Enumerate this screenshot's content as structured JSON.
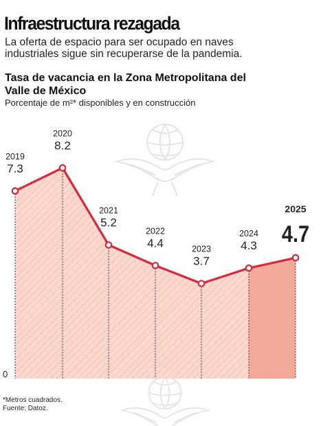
{
  "headline": "Infraestructura rezagada",
  "deck": "La oferta de espacio para ser ocupado en naves industriales sigue sin recuperarse de la pandemia.",
  "chart_data": {
    "type": "area",
    "title": "Tasa de vacancia en la Zona Metropolitana del Valle de México",
    "subtitle": "Porcentaje de m²* disponibles y en construcción",
    "categories": [
      "2019",
      "2020",
      "2021",
      "2022",
      "2023",
      "2024",
      "2025"
    ],
    "values": [
      7.3,
      8.2,
      5.2,
      4.4,
      3.7,
      4.3,
      4.7
    ],
    "value_labels": [
      "7.3",
      "8.2",
      "5.2",
      "4.4",
      "3.7",
      "4.3",
      "4.7"
    ],
    "highlight_category": "2025",
    "ylim": [
      0,
      10
    ],
    "baseline_label": "0",
    "xlabel": "",
    "ylabel": "",
    "grid": false,
    "colors": {
      "line": "#d8283a",
      "fill": "#fbd8cd",
      "fill_highlight": "#f4a898",
      "hatch": "#f0b0a0"
    }
  },
  "footnote": {
    "line1": "*Metros cuadrados.",
    "line2": "Fuente: Datoz."
  }
}
